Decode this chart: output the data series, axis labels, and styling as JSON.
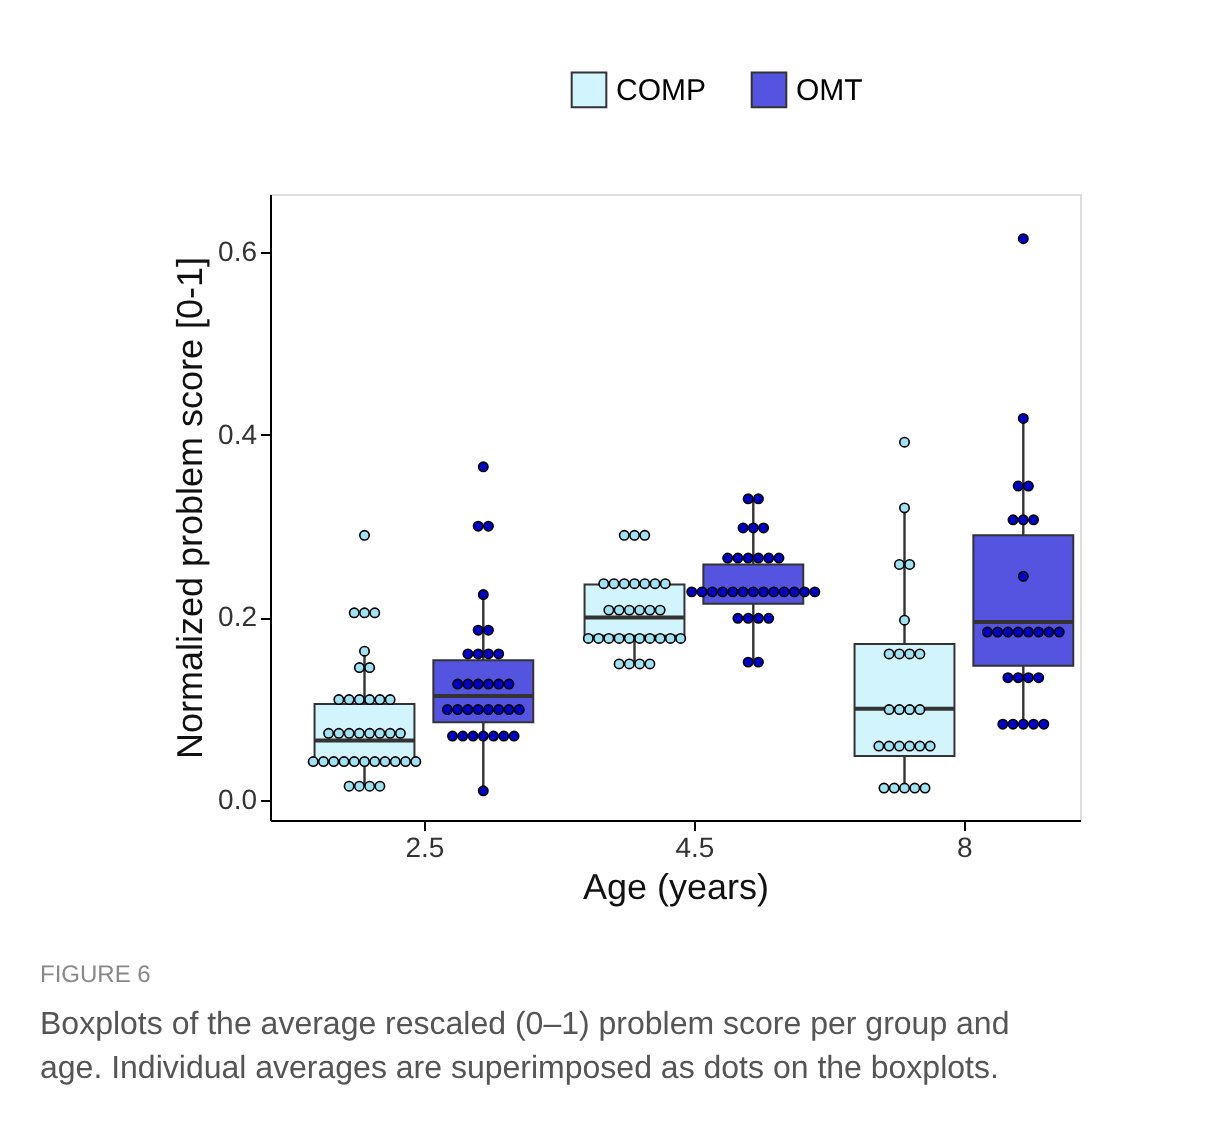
{
  "chart_data": {
    "type": "box",
    "xlabel": "Age (years)",
    "ylabel": "Normalized problem score [0-1]",
    "categories": [
      "2.5",
      "4.5",
      "8"
    ],
    "ylim": [
      -0.022,
      0.664
    ],
    "yticks": [
      {
        "value": 0,
        "label": "0.0"
      },
      {
        "value": 0.2,
        "label": "0.2"
      },
      {
        "value": 0.4,
        "label": "0.4"
      },
      {
        "value": 0.6,
        "label": "0.6"
      }
    ],
    "grid": false,
    "legend": "top",
    "series": [
      {
        "name": "COMP",
        "color": "#d2f4fc",
        "boxes": [
          {
            "low": 0.015,
            "q1": 0.042,
            "median": 0.065,
            "q3": 0.105,
            "high": 0.163
          },
          {
            "low": 0.149,
            "q1": 0.18,
            "median": 0.2,
            "q3": 0.236
          },
          {
            "low": 0.013,
            "q1": 0.048,
            "median": 0.1,
            "q3": 0.171,
            "high": 0.32
          }
        ]
      },
      {
        "name": "OMT",
        "color": "#5454e0",
        "boxes": [
          {
            "low": 0.01,
            "q1": 0.085,
            "median": 0.114,
            "q3": 0.153,
            "high": 0.225
          },
          {
            "low": 0.151,
            "q1": 0.215,
            "median": 0.228,
            "q3": 0.258,
            "high": 0.33
          },
          {
            "low": 0.083,
            "q1": 0.147,
            "median": 0.195,
            "q3": 0.29,
            "high": 0.418
          }
        ]
      },
      {
        "type": "scatter",
        "color": "#a0e2f2",
        "x": [
          "2.5",
          "2.5",
          "2.5",
          "2.5",
          "2.5",
          "2.5",
          "2.5",
          "2.5",
          "2.5",
          "2.5",
          "2.5",
          "2.5",
          "2.5",
          "2.5",
          "2.5",
          "2.5",
          "2.5",
          "2.5",
          "2.5",
          "2.5",
          "2.5",
          "2.5",
          "2.5",
          "2.5",
          "2.5",
          "2.5",
          "2.5",
          "2.5",
          "2.5",
          "2.5",
          "2.5",
          "2.5",
          "2.5",
          "2.5",
          "2.5",
          "2.5",
          "4.5",
          "4.5",
          "4.5",
          "4.5",
          "4.5",
          "4.5",
          "4.5",
          "4.5",
          "4.5",
          "4.5",
          "4.5",
          "4.5",
          "4.5",
          "4.5",
          "4.5",
          "4.5",
          "4.5",
          "4.5",
          "4.5",
          "4.5",
          "4.5",
          "4.5",
          "4.5",
          "4.5",
          "4.5",
          "4.5",
          "4.5",
          "4.5",
          "4.5",
          "4.5",
          "8",
          "8",
          "8",
          "8",
          "8",
          "8",
          "8",
          "8",
          "8",
          "8",
          "8",
          "8",
          "8",
          "8",
          "8",
          "8",
          "8",
          "8",
          "8",
          "8",
          "8",
          "8",
          "8",
          "8"
        ],
        "values": [
          0.29,
          0.205,
          0.205,
          0.205,
          0.163,
          0.145,
          0.145,
          0.11,
          0.11,
          0.11,
          0.11,
          0.11,
          0.11,
          0.073,
          0.073,
          0.073,
          0.073,
          0.073,
          0.073,
          0.073,
          0.073,
          0.042,
          0.042,
          0.042,
          0.042,
          0.042,
          0.042,
          0.042,
          0.042,
          0.042,
          0.042,
          0.042,
          0.015,
          0.015,
          0.015,
          0.015,
          0.29,
          0.29,
          0.29,
          0.237,
          0.237,
          0.237,
          0.237,
          0.237,
          0.237,
          0.237,
          0.208,
          0.208,
          0.208,
          0.208,
          0.208,
          0.208,
          0.177,
          0.177,
          0.177,
          0.177,
          0.177,
          0.177,
          0.177,
          0.177,
          0.177,
          0.177,
          0.149,
          0.149,
          0.149,
          0.149,
          0.392,
          0.32,
          0.258,
          0.258,
          0.197,
          0.16,
          0.16,
          0.16,
          0.16,
          0.099,
          0.099,
          0.099,
          0.099,
          0.059,
          0.059,
          0.059,
          0.059,
          0.059,
          0.059,
          0.013,
          0.013,
          0.013,
          0.013,
          0.013
        ]
      },
      {
        "type": "scatter",
        "color": "#0000c8",
        "x": [
          "2.5",
          "2.5",
          "2.5",
          "2.5",
          "2.5",
          "2.5",
          "2.5",
          "2.5",
          "2.5",
          "2.5",
          "2.5",
          "2.5",
          "2.5",
          "2.5",
          "2.5",
          "2.5",
          "2.5",
          "2.5",
          "2.5",
          "2.5",
          "2.5",
          "2.5",
          "2.5",
          "2.5",
          "2.5",
          "2.5",
          "2.5",
          "2.5",
          "2.5",
          "2.5",
          "2.5",
          "2.5",
          "4.5",
          "4.5",
          "4.5",
          "4.5",
          "4.5",
          "4.5",
          "4.5",
          "4.5",
          "4.5",
          "4.5",
          "4.5",
          "4.5",
          "4.5",
          "4.5",
          "4.5",
          "4.5",
          "4.5",
          "4.5",
          "4.5",
          "4.5",
          "4.5",
          "4.5",
          "4.5",
          "4.5",
          "4.5",
          "4.5",
          "4.5",
          "4.5",
          "4.5",
          "4.5",
          "8",
          "8",
          "8",
          "8",
          "8",
          "8",
          "8",
          "8",
          "8",
          "8",
          "8",
          "8",
          "8",
          "8",
          "8",
          "8",
          "8",
          "8",
          "8",
          "8",
          "8",
          "8",
          "8",
          "8",
          "8"
        ],
        "values": [
          0.365,
          0.3,
          0.3,
          0.225,
          0.186,
          0.186,
          0.16,
          0.16,
          0.16,
          0.16,
          0.127,
          0.127,
          0.127,
          0.127,
          0.127,
          0.127,
          0.099,
          0.099,
          0.099,
          0.099,
          0.099,
          0.099,
          0.099,
          0.099,
          0.07,
          0.07,
          0.07,
          0.07,
          0.07,
          0.07,
          0.07,
          0.01,
          0.33,
          0.33,
          0.298,
          0.298,
          0.298,
          0.265,
          0.265,
          0.265,
          0.265,
          0.265,
          0.265,
          0.228,
          0.228,
          0.228,
          0.228,
          0.228,
          0.228,
          0.228,
          0.228,
          0.228,
          0.228,
          0.228,
          0.228,
          0.228,
          0.199,
          0.199,
          0.199,
          0.199,
          0.151,
          0.151,
          0.615,
          0.418,
          0.344,
          0.344,
          0.307,
          0.307,
          0.307,
          0.245,
          0.184,
          0.184,
          0.184,
          0.184,
          0.184,
          0.184,
          0.184,
          0.184,
          0.134,
          0.134,
          0.134,
          0.134,
          0.083,
          0.083,
          0.083,
          0.083,
          0.083
        ]
      }
    ],
    "annotations": [
      "FIGURE 6",
      "Boxplots of the average rescaled (0–1) problem score per group and age. Individual averages are superimposed as dots on the boxplots."
    ]
  }
}
